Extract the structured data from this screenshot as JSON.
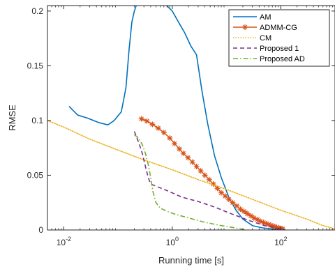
{
  "chart_data": {
    "type": "line",
    "title": "",
    "xlabel": "Running time [s]",
    "ylabel": "RMSE",
    "xscale": "log",
    "xlim": [
      0.005,
      1000
    ],
    "ylim": [
      0,
      0.205
    ],
    "x_tick_labels": [
      {
        "value": 0.01,
        "base": "10",
        "exp": "-2"
      },
      {
        "value": 1,
        "base": "10",
        "exp": "0"
      },
      {
        "value": 100,
        "base": "10",
        "exp": "2"
      }
    ],
    "y_ticks": [
      {
        "value": 0,
        "label": "0"
      },
      {
        "value": 0.05,
        "label": "0.05"
      },
      {
        "value": 0.1,
        "label": "0.1"
      },
      {
        "value": 0.15,
        "label": "0.15"
      },
      {
        "value": 0.2,
        "label": "0.2"
      }
    ],
    "grid": false,
    "legend_position": "top-right",
    "series": [
      {
        "name": "AM",
        "color": "#0072BD",
        "style": "solid",
        "marker": "none",
        "x": [
          0.0125,
          0.018,
          0.028,
          0.045,
          0.065,
          0.085,
          0.115,
          0.14,
          0.16,
          0.18,
          0.2,
          0.22,
          0.26,
          0.3,
          0.4,
          0.55,
          0.75,
          1.0,
          1.3,
          1.7,
          2.2,
          2.8,
          3.5,
          4.5,
          6,
          8,
          11,
          15,
          20,
          30,
          45,
          65,
          100
        ],
        "y": [
          0.113,
          0.105,
          0.102,
          0.098,
          0.096,
          0.1,
          0.108,
          0.13,
          0.165,
          0.19,
          0.2,
          0.206,
          0.207,
          0.207,
          0.207,
          0.207,
          0.206,
          0.2,
          0.19,
          0.18,
          0.168,
          0.16,
          0.128,
          0.097,
          0.068,
          0.048,
          0.03,
          0.018,
          0.01,
          0.004,
          0.002,
          0.001,
          0.0005
        ]
      },
      {
        "name": "ADMM-CG",
        "color": "#D95319",
        "style": "solid",
        "marker": "asterisk",
        "x": [
          0.27,
          0.34,
          0.43,
          0.55,
          0.7,
          0.9,
          1.1,
          1.35,
          1.6,
          1.95,
          2.35,
          2.8,
          3.35,
          4,
          4.8,
          5.7,
          6.8,
          8,
          9.5,
          11,
          13,
          15.5,
          18,
          21,
          24,
          28,
          32,
          37,
          42,
          48,
          54,
          60,
          66,
          72,
          78,
          84,
          90,
          96,
          102,
          108
        ],
        "y": [
          0.1015,
          0.0995,
          0.0965,
          0.093,
          0.089,
          0.084,
          0.079,
          0.074,
          0.07,
          0.066,
          0.062,
          0.058,
          0.054,
          0.05,
          0.046,
          0.042,
          0.038,
          0.034,
          0.031,
          0.028,
          0.025,
          0.022,
          0.019,
          0.017,
          0.015,
          0.013,
          0.011,
          0.0095,
          0.008,
          0.0068,
          0.0058,
          0.005,
          0.0042,
          0.0035,
          0.003,
          0.0025,
          0.002,
          0.0015,
          0.0012,
          0.001
        ]
      },
      {
        "name": "CM",
        "color": "#EDB120",
        "style": "dotted",
        "marker": "none",
        "x": [
          0.005,
          0.01,
          0.03,
          0.1,
          0.3,
          1,
          3,
          10,
          30,
          100,
          300,
          600,
          1000
        ],
        "y": [
          0.1,
          0.094,
          0.083,
          0.073,
          0.064,
          0.055,
          0.046,
          0.037,
          0.028,
          0.018,
          0.01,
          0.004,
          0.001
        ]
      },
      {
        "name": "Proposed 1",
        "color": "#7E2F8E",
        "style": "dashed",
        "marker": "none",
        "x": [
          0.2,
          0.24,
          0.28,
          0.32,
          0.36,
          0.4,
          0.5,
          0.8,
          1.5,
          3,
          6,
          12,
          25,
          50,
          100,
          120
        ],
        "y": [
          0.09,
          0.08,
          0.07,
          0.058,
          0.048,
          0.042,
          0.04,
          0.036,
          0.03,
          0.026,
          0.021,
          0.015,
          0.009,
          0.004,
          0.001,
          0.0005
        ]
      },
      {
        "name": "Proposed AD",
        "color": "#77AC30",
        "style": "dashdot",
        "marker": "none",
        "x": [
          0.2,
          0.24,
          0.28,
          0.32,
          0.36,
          0.4,
          0.44,
          0.5,
          0.6,
          0.8,
          1.2,
          2,
          4,
          8,
          14,
          19,
          23
        ],
        "y": [
          0.087,
          0.084,
          0.078,
          0.07,
          0.06,
          0.048,
          0.035,
          0.025,
          0.02,
          0.017,
          0.014,
          0.011,
          0.007,
          0.004,
          0.002,
          0.0008,
          0.0001
        ]
      }
    ]
  }
}
